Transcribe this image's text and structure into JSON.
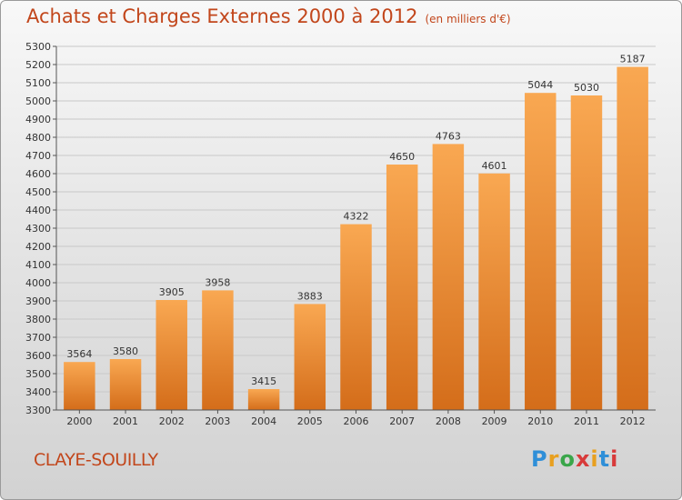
{
  "title": "Achats et Charges Externes 2000 à 2012",
  "subtitle": "(en milliers d'€)",
  "location": "CLAYE-SOUILLY",
  "logo": "Proxiti",
  "colors": {
    "bar": "#f39a3c",
    "bar_dark": "#d06a18",
    "title": "#c2461b"
  },
  "chart_data": {
    "type": "bar",
    "title": "Achats et Charges Externes 2000 à 2012",
    "subtitle": "(en milliers d'€)",
    "categories": [
      "2000",
      "2001",
      "2002",
      "2003",
      "2004",
      "2005",
      "2006",
      "2007",
      "2008",
      "2009",
      "2010",
      "2011",
      "2012"
    ],
    "values": [
      3564,
      3580,
      3905,
      3958,
      3415,
      3883,
      4322,
      4650,
      4763,
      4601,
      5044,
      5030,
      5187
    ],
    "ylim": [
      3300,
      5300
    ],
    "ytick_step": 100,
    "grid": true,
    "legend": "none"
  }
}
